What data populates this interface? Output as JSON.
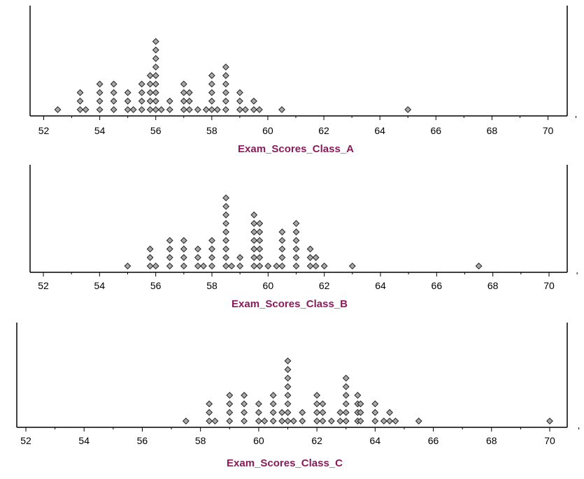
{
  "colors": {
    "dot_fill": "#a9a9a9",
    "dot_stroke": "#1f1f1f",
    "axis": "#000000",
    "axis_title": "#8b1a5a"
  },
  "chart_data": [
    {
      "type": "scatter",
      "subtype": "dot-plot",
      "title": "",
      "xlabel": "Exam_Scores_Class_A",
      "ylabel": "",
      "xlim": [
        51.5,
        71
      ],
      "xticks": [
        52,
        54,
        56,
        58,
        60,
        62,
        64,
        66,
        68,
        70
      ],
      "grid": false,
      "legend": "none",
      "points": [
        {
          "x": 52.5,
          "count": 1
        },
        {
          "x": 53.3,
          "count": 3
        },
        {
          "x": 53.5,
          "count": 1
        },
        {
          "x": 54.0,
          "count": 4
        },
        {
          "x": 54.5,
          "count": 4
        },
        {
          "x": 55.0,
          "count": 3
        },
        {
          "x": 55.2,
          "count": 1
        },
        {
          "x": 55.5,
          "count": 4
        },
        {
          "x": 55.8,
          "count": 5
        },
        {
          "x": 56.0,
          "count": 9
        },
        {
          "x": 56.2,
          "count": 1
        },
        {
          "x": 56.5,
          "count": 2
        },
        {
          "x": 57.0,
          "count": 4
        },
        {
          "x": 57.2,
          "count": 3
        },
        {
          "x": 57.5,
          "count": 1
        },
        {
          "x": 57.8,
          "count": 1
        },
        {
          "x": 58.0,
          "count": 5
        },
        {
          "x": 58.2,
          "count": 1
        },
        {
          "x": 58.5,
          "count": 6
        },
        {
          "x": 59.0,
          "count": 3
        },
        {
          "x": 59.2,
          "count": 1
        },
        {
          "x": 59.5,
          "count": 2
        },
        {
          "x": 59.7,
          "count": 1
        },
        {
          "x": 60.5,
          "count": 1
        },
        {
          "x": 65.0,
          "count": 1
        }
      ]
    },
    {
      "type": "scatter",
      "subtype": "dot-plot",
      "title": "",
      "xlabel": "Exam_Scores_Class_B",
      "ylabel": "",
      "xlim": [
        51.5,
        71
      ],
      "xticks": [
        52,
        54,
        56,
        58,
        60,
        62,
        64,
        66,
        68,
        70
      ],
      "grid": false,
      "legend": "none",
      "points": [
        {
          "x": 55.0,
          "count": 1
        },
        {
          "x": 55.8,
          "count": 3
        },
        {
          "x": 56.0,
          "count": 1
        },
        {
          "x": 56.5,
          "count": 4
        },
        {
          "x": 57.0,
          "count": 4
        },
        {
          "x": 57.5,
          "count": 3
        },
        {
          "x": 57.7,
          "count": 1
        },
        {
          "x": 58.0,
          "count": 4
        },
        {
          "x": 58.5,
          "count": 9
        },
        {
          "x": 58.7,
          "count": 1
        },
        {
          "x": 59.0,
          "count": 2
        },
        {
          "x": 59.5,
          "count": 7
        },
        {
          "x": 59.7,
          "count": 6
        },
        {
          "x": 60.0,
          "count": 1
        },
        {
          "x": 60.3,
          "count": 1
        },
        {
          "x": 60.5,
          "count": 5
        },
        {
          "x": 61.0,
          "count": 6
        },
        {
          "x": 61.5,
          "count": 3
        },
        {
          "x": 61.7,
          "count": 2
        },
        {
          "x": 62.0,
          "count": 1
        },
        {
          "x": 63.0,
          "count": 1
        },
        {
          "x": 67.5,
          "count": 1
        }
      ]
    },
    {
      "type": "scatter",
      "subtype": "dot-plot",
      "title": "",
      "xlabel": "Exam_Scores_Class_C",
      "ylabel": "",
      "xlim": [
        51.9,
        71
      ],
      "xticks": [
        52,
        54,
        56,
        58,
        60,
        62,
        64,
        66,
        68,
        70
      ],
      "grid": false,
      "legend": "none",
      "points": [
        {
          "x": 57.5,
          "count": 1
        },
        {
          "x": 58.3,
          "count": 3
        },
        {
          "x": 58.5,
          "count": 1
        },
        {
          "x": 59.0,
          "count": 4
        },
        {
          "x": 59.5,
          "count": 4
        },
        {
          "x": 60.0,
          "count": 3
        },
        {
          "x": 60.2,
          "count": 1
        },
        {
          "x": 60.5,
          "count": 4
        },
        {
          "x": 60.8,
          "count": 2
        },
        {
          "x": 61.0,
          "count": 8
        },
        {
          "x": 61.2,
          "count": 1
        },
        {
          "x": 61.5,
          "count": 2
        },
        {
          "x": 62.0,
          "count": 4
        },
        {
          "x": 62.2,
          "count": 3
        },
        {
          "x": 62.5,
          "count": 1
        },
        {
          "x": 62.8,
          "count": 2
        },
        {
          "x": 63.0,
          "count": 6
        },
        {
          "x": 63.4,
          "count": 4
        },
        {
          "x": 63.5,
          "count": 3
        },
        {
          "x": 64.0,
          "count": 3
        },
        {
          "x": 64.3,
          "count": 1
        },
        {
          "x": 64.5,
          "count": 2
        },
        {
          "x": 64.7,
          "count": 1
        },
        {
          "x": 65.5,
          "count": 1
        },
        {
          "x": 70.0,
          "count": 1
        }
      ]
    }
  ]
}
